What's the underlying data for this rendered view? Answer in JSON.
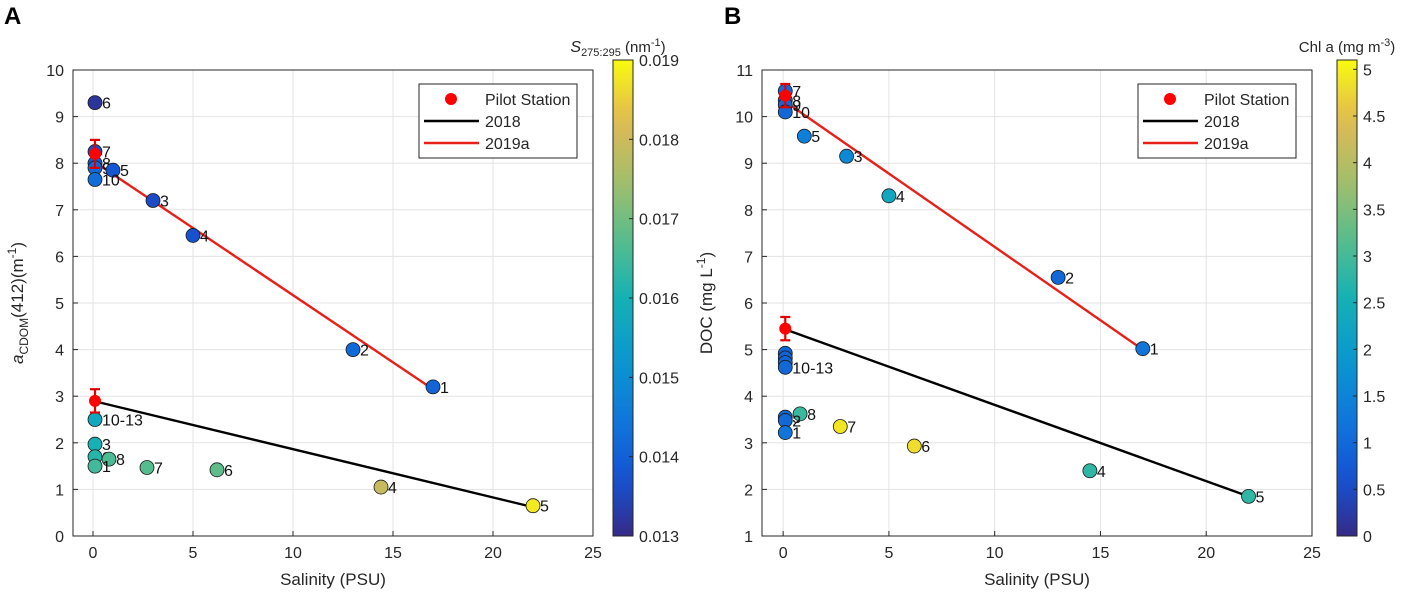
{
  "chart_data": [
    {
      "panel": "A",
      "type": "scatter",
      "xlabel": "Salinity (PSU)",
      "ylabel_parts": {
        "italic": "a",
        "sub": "CDOM",
        "mid": "(412)(m",
        "sup": "-1",
        "end": ")"
      },
      "xlim": [
        -1,
        25
      ],
      "ylim": [
        0,
        10
      ],
      "xticks": [
        0,
        5,
        10,
        15,
        20,
        25
      ],
      "yticks": [
        0,
        1,
        2,
        3,
        4,
        5,
        6,
        7,
        8,
        9,
        10
      ],
      "grid": true,
      "legend_position": "top-right",
      "legend": [
        {
          "label": "Pilot Station",
          "kind": "marker",
          "color": "#ff0000"
        },
        {
          "label": "2018",
          "kind": "line",
          "color": "#000000"
        },
        {
          "label": "2019a",
          "kind": "line",
          "color": "#e8201a"
        }
      ],
      "colorbar": {
        "title_parts": {
          "italic": "S",
          "sub": "275:295",
          "end": " (nm",
          "sup": "-1",
          "close": ")"
        },
        "range": [
          0.013,
          0.019
        ],
        "ticks": [
          0.013,
          0.014,
          0.015,
          0.016,
          0.017,
          0.018,
          0.019
        ],
        "tick_labels": [
          "0.013",
          "0.014",
          "0.015",
          "0.016",
          "0.017",
          "0.018",
          "0.019"
        ],
        "colormap": "parula"
      },
      "fit_lines": [
        {
          "name": "2018",
          "color": "#000000",
          "x": [
            0,
            22
          ],
          "y": [
            2.9,
            0.62
          ]
        },
        {
          "name": "2019a",
          "color": "#e8201a",
          "x": [
            0,
            17
          ],
          "y": [
            8.05,
            3.15
          ]
        }
      ],
      "pilot_points": [
        {
          "x": 0.1,
          "y": 8.2,
          "err_low": 7.9,
          "err_high": 8.5
        },
        {
          "x": 0.1,
          "y": 2.9,
          "err_low": 2.65,
          "err_high": 3.15
        }
      ],
      "series": [
        {
          "name": "2019a",
          "points": [
            {
              "x": 0.1,
              "y": 9.3,
              "c": 0.0132,
              "label": "6"
            },
            {
              "x": 0.1,
              "y": 8.25,
              "c": 0.0136,
              "label": "7"
            },
            {
              "x": 0.1,
              "y": 8.0,
              "c": 0.0139,
              "label": "8"
            },
            {
              "x": 0.1,
              "y": 7.9,
              "c": 0.0142,
              "label": "9"
            },
            {
              "x": 1.0,
              "y": 7.85,
              "c": 0.0138,
              "label": "5"
            },
            {
              "x": 0.1,
              "y": 7.65,
              "c": 0.0143,
              "label": "10"
            },
            {
              "x": 3.0,
              "y": 7.2,
              "c": 0.0136,
              "label": "3"
            },
            {
              "x": 5.0,
              "y": 6.45,
              "c": 0.0137,
              "label": "4"
            },
            {
              "x": 13.0,
              "y": 4.0,
              "c": 0.0142,
              "label": "2"
            },
            {
              "x": 17.0,
              "y": 3.2,
              "c": 0.0141,
              "label": "1"
            }
          ]
        },
        {
          "name": "2018",
          "points": [
            {
              "x": 0.1,
              "y": 2.5,
              "c": 0.0157,
              "label": "10-13"
            },
            {
              "x": 0.1,
              "y": 1.97,
              "c": 0.016,
              "label": "3"
            },
            {
              "x": 0.1,
              "y": 1.7,
              "c": 0.0162,
              "label": "2"
            },
            {
              "x": 0.8,
              "y": 1.65,
              "c": 0.0166,
              "label": "8"
            },
            {
              "x": 0.1,
              "y": 1.5,
              "c": 0.0165,
              "label": "1"
            },
            {
              "x": 2.7,
              "y": 1.47,
              "c": 0.0167,
              "label": "7"
            },
            {
              "x": 6.2,
              "y": 1.42,
              "c": 0.0168,
              "label": "6"
            },
            {
              "x": 14.4,
              "y": 1.05,
              "c": 0.0179,
              "label": "4"
            },
            {
              "x": 22.0,
              "y": 0.65,
              "c": 0.0188,
              "label": "5"
            }
          ]
        }
      ]
    },
    {
      "panel": "B",
      "type": "scatter",
      "xlabel": "Salinity (PSU)",
      "ylabel_parts": {
        "italic": "",
        "sub": "",
        "mid": "DOC (mg L",
        "sup": "-1",
        "end": ")"
      },
      "xlim": [
        -1,
        25
      ],
      "ylim": [
        1,
        11
      ],
      "xticks": [
        0,
        5,
        10,
        15,
        20,
        25
      ],
      "yticks": [
        1,
        2,
        3,
        4,
        5,
        6,
        7,
        8,
        9,
        10,
        11
      ],
      "grid": true,
      "legend_position": "top-right",
      "legend": [
        {
          "label": "Pilot Station",
          "kind": "marker",
          "color": "#ff0000"
        },
        {
          "label": "2018",
          "kind": "line",
          "color": "#000000"
        },
        {
          "label": "2019a",
          "kind": "line",
          "color": "#e8201a"
        }
      ],
      "colorbar": {
        "title_parts": {
          "italic": "",
          "sub": "",
          "end": "Chl a (mg m",
          "sup": "-3",
          "close": ")"
        },
        "range": [
          0,
          5.1
        ],
        "ticks": [
          0,
          0.5,
          1,
          1.5,
          2,
          2.5,
          3,
          3.5,
          4,
          4.5,
          5
        ],
        "tick_labels": [
          "0",
          "0.5",
          "1",
          "1.5",
          "2",
          "2.5",
          "3",
          "3.5",
          "4",
          "4.5",
          "5"
        ],
        "colormap": "parula"
      },
      "fit_lines": [
        {
          "name": "2018",
          "color": "#000000",
          "x": [
            0,
            22
          ],
          "y": [
            5.45,
            1.85
          ]
        },
        {
          "name": "2019a",
          "color": "#e8201a",
          "x": [
            0,
            17
          ],
          "y": [
            10.35,
            5.0
          ]
        }
      ],
      "pilot_points": [
        {
          "x": 0.1,
          "y": 10.45,
          "err_low": 10.2,
          "err_high": 10.7
        },
        {
          "x": 0.1,
          "y": 5.45,
          "err_low": 5.2,
          "err_high": 5.7
        }
      ],
      "series": [
        {
          "name": "2019a",
          "points": [
            {
              "x": 0.1,
              "y": 10.55,
              "c": 1.0,
              "label": "7"
            },
            {
              "x": 0.1,
              "y": 10.35,
              "c": 0.9,
              "label": "8"
            },
            {
              "x": 0.1,
              "y": 10.25,
              "c": 0.95,
              "label": "9"
            },
            {
              "x": 0.1,
              "y": 10.1,
              "c": 1.0,
              "label": "10"
            },
            {
              "x": 1.0,
              "y": 9.58,
              "c": 1.4,
              "label": "5"
            },
            {
              "x": 3.0,
              "y": 9.15,
              "c": 1.6,
              "label": "3"
            },
            {
              "x": 5.0,
              "y": 8.3,
              "c": 2.3,
              "label": "4"
            },
            {
              "x": 13.0,
              "y": 6.55,
              "c": 1.0,
              "label": "2"
            },
            {
              "x": 17.0,
              "y": 5.02,
              "c": 1.2,
              "label": "1"
            }
          ]
        },
        {
          "name": "2018",
          "points": [
            {
              "x": 0.1,
              "y": 4.92,
              "c": 0.9,
              "label": ""
            },
            {
              "x": 0.1,
              "y": 4.82,
              "c": 0.9,
              "label": ""
            },
            {
              "x": 0.1,
              "y": 4.72,
              "c": 0.95,
              "label": ""
            },
            {
              "x": 0.1,
              "y": 4.62,
              "c": 1.0,
              "label": "10-13"
            },
            {
              "x": 0.1,
              "y": 3.55,
              "c": 1.1,
              "label": "3"
            },
            {
              "x": 0.8,
              "y": 3.62,
              "c": 2.9,
              "label": "8"
            },
            {
              "x": 0.1,
              "y": 3.48,
              "c": 1.0,
              "label": "2"
            },
            {
              "x": 0.1,
              "y": 3.22,
              "c": 1.2,
              "label": "1"
            },
            {
              "x": 2.7,
              "y": 3.35,
              "c": 4.9,
              "label": "7"
            },
            {
              "x": 6.2,
              "y": 2.93,
              "c": 4.8,
              "label": "6"
            },
            {
              "x": 14.5,
              "y": 2.4,
              "c": 2.8,
              "label": "4"
            },
            {
              "x": 22.0,
              "y": 1.85,
              "c": 2.8,
              "label": "5"
            }
          ]
        }
      ]
    }
  ]
}
